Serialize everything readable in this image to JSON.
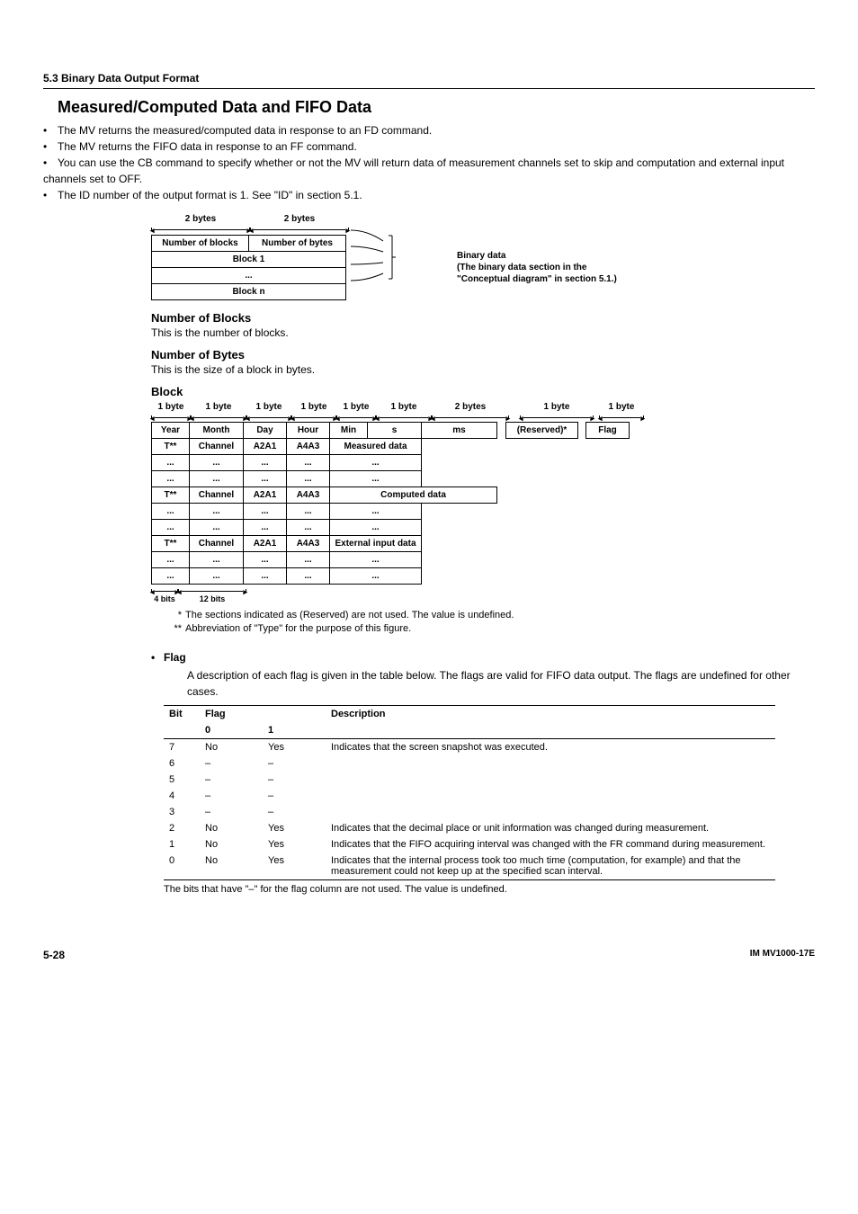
{
  "section_header": "5.3  Binary Data Output Format",
  "title": "Measured/Computed Data and FIFO Data",
  "bullets": [
    "The MV returns the measured/computed data in response to an FD command.",
    "The MV returns the FIFO data in response to an FF command.",
    "You can use the CB command to specify whether or not the MV will return data of measurement channels set to skip and computation and external input channels set to OFF.",
    "The ID number of the output format is 1. See \"ID\" in section 5.1."
  ],
  "diagram1": {
    "dims": [
      "2 bytes",
      "2 bytes"
    ],
    "header_cells": [
      "Number of blocks",
      "Number of bytes"
    ],
    "rows": [
      "Block 1",
      "...",
      "Block n"
    ],
    "brace_lines": [
      "Binary data",
      "(The binary data section in the",
      "\"Conceptual diagram\" in section 5.1.)"
    ]
  },
  "num_blocks": {
    "head": "Number of Blocks",
    "text": "This is the number of blocks."
  },
  "num_bytes": {
    "head": "Number of Bytes",
    "text": "This is the size of a block in bytes."
  },
  "block": {
    "head": "Block",
    "dims": [
      "1 byte",
      "1 byte",
      "1 byte",
      "1 byte",
      "1 byte",
      "1 byte",
      "2 bytes",
      "1 byte",
      "1 byte"
    ],
    "row1": [
      "Year",
      "Month",
      "Day",
      "Hour",
      "Min",
      "s",
      "ms",
      "(Reserved)*",
      "Flag"
    ],
    "data_rows": [
      [
        "T**",
        "Channel",
        "A2A1",
        "A4A3",
        "Measured data"
      ],
      [
        "...",
        "...",
        "...",
        "...",
        "..."
      ],
      [
        "...",
        "...",
        "...",
        "...",
        "..."
      ],
      [
        "T**",
        "Channel",
        "A2A1",
        "A4A3",
        "Computed data"
      ],
      [
        "...",
        "...",
        "...",
        "...",
        "..."
      ],
      [
        "...",
        "...",
        "...",
        "...",
        "..."
      ],
      [
        "T**",
        "Channel",
        "A2A1",
        "A4A3",
        "External input data"
      ],
      [
        "...",
        "...",
        "...",
        "...",
        "..."
      ],
      [
        "...",
        "...",
        "...",
        "...",
        "..."
      ]
    ],
    "foot_dims": [
      "4 bits",
      "12 bits"
    ],
    "footnotes": [
      {
        "mark": "*",
        "text": "The sections indicated as (Reserved) are not used. The value is undefined."
      },
      {
        "mark": "**",
        "text": "Abbreviation of \"Type\" for the purpose of this figure."
      }
    ]
  },
  "flag": {
    "head": "Flag",
    "intro": "A description of each flag is given in the table below. The flags are valid for FIFO data output. The flags are undefined for other cases.",
    "table": {
      "headers": [
        "Bit",
        "Flag",
        "",
        "Description"
      ],
      "subheaders": [
        "",
        "0",
        "1",
        ""
      ],
      "rows": [
        {
          "bit": "7",
          "f0": "No",
          "f1": "Yes",
          "desc": "Indicates that the screen snapshot was executed."
        },
        {
          "bit": "6",
          "f0": "–",
          "f1": "–",
          "desc": ""
        },
        {
          "bit": "5",
          "f0": "–",
          "f1": "–",
          "desc": ""
        },
        {
          "bit": "4",
          "f0": "–",
          "f1": "–",
          "desc": ""
        },
        {
          "bit": "3",
          "f0": "–",
          "f1": "–",
          "desc": ""
        },
        {
          "bit": "2",
          "f0": "No",
          "f1": "Yes",
          "desc": "Indicates that the decimal place or unit information was changed during measurement."
        },
        {
          "bit": "1",
          "f0": "No",
          "f1": "Yes",
          "desc": "Indicates that the FIFO acquiring interval was changed with the FR command during measurement."
        },
        {
          "bit": "0",
          "f0": "No",
          "f1": "Yes",
          "desc": "Indicates that the internal process took too much time (computation, for example) and that the measurement could not keep up at the specified scan interval."
        }
      ]
    },
    "note": "The bits that have \"–\" for the flag column are not used. The value is undefined."
  },
  "footer": {
    "page": "5-28",
    "doc": "IM MV1000-17E"
  },
  "col_widths": {
    "d1_dim": [
      110,
      110
    ],
    "block_dim": [
      44,
      62,
      50,
      50,
      44,
      62,
      86,
      82,
      50
    ],
    "block_foot": [
      30,
      76
    ]
  }
}
